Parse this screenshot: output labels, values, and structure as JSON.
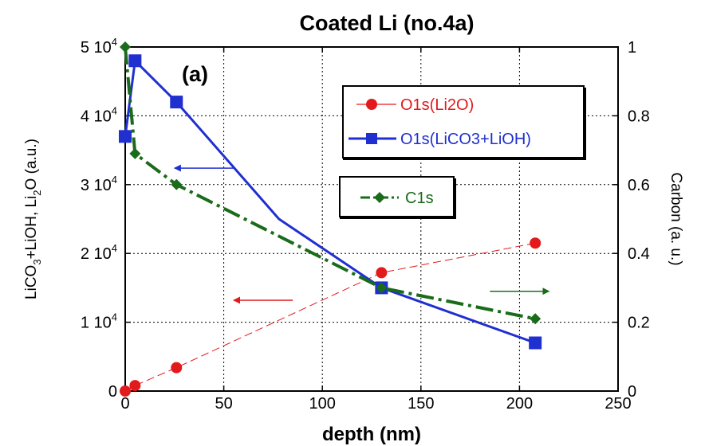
{
  "chart_data": {
    "type": "line",
    "title": "Coated Li (no.4a)",
    "panel_label": "(a)",
    "xlabel": "depth (nm)",
    "ylabel_left": {
      "base": "LiCO",
      "sub1": "3",
      "mid": "+LiOH, Li",
      "sub2": "2",
      "end": "O (a.u.)"
    },
    "ylabel_right": "Carbon (a. u.)",
    "xlim": [
      0,
      250
    ],
    "ylim_left": [
      0,
      50000
    ],
    "ylim_right": [
      0,
      1
    ],
    "x_ticks": [
      "0",
      "50",
      "100",
      "150",
      "200",
      "250"
    ],
    "y_left_ticks": [
      {
        "mant": "0",
        "exp": ""
      },
      {
        "mant": "1 10",
        "exp": "4"
      },
      {
        "mant": "2 10",
        "exp": "4"
      },
      {
        "mant": "3 10",
        "exp": "4"
      },
      {
        "mant": "4 10",
        "exp": "4"
      },
      {
        "mant": "5 10",
        "exp": "4"
      }
    ],
    "y_right_ticks": [
      "0",
      "0.2",
      "0.4",
      "0.6",
      "0.8",
      "1"
    ],
    "grid": true,
    "series": [
      {
        "name": "O1s(Li2O)",
        "axis": "left",
        "color": "#e31a1c",
        "marker": "circle",
        "line": "thin-dashed",
        "x": [
          0,
          5,
          26,
          130,
          208
        ],
        "y": [
          0,
          800,
          3400,
          17200,
          21500
        ]
      },
      {
        "name": "O1s(LiCO3+LiOH)",
        "axis": "left",
        "color": "#1f2fd0",
        "marker": "square",
        "line": "solid",
        "x": [
          0,
          5,
          26,
          78,
          130,
          208
        ],
        "y": [
          37000,
          48000,
          42000,
          25000,
          15000,
          7000
        ],
        "marker_mask": [
          true,
          true,
          true,
          false,
          true,
          true
        ]
      },
      {
        "name": "C1s",
        "axis": "right",
        "color": "#1a6b1a",
        "marker": "diamond",
        "line": "dash-dot",
        "x": [
          0,
          5,
          26,
          130,
          208
        ],
        "y": [
          1.0,
          0.69,
          0.6,
          0.3,
          0.21
        ]
      }
    ],
    "annotations": [
      {
        "type": "arrow",
        "direction": "left",
        "color": "#1f2fd0",
        "y_axis": "left",
        "x_from": 55,
        "x_to": 25,
        "y": 32400
      },
      {
        "type": "arrow",
        "direction": "left",
        "color": "#e31a1c",
        "y_axis": "left",
        "x_from": 85,
        "x_to": 55,
        "y": 13200
      },
      {
        "type": "arrow",
        "direction": "right",
        "color": "#1a6b1a",
        "y_axis": "right",
        "x_from": 185,
        "x_to": 215,
        "y": 0.29
      }
    ],
    "legend": [
      "O1s(Li2O)",
      "O1s(LiCO3+LiOH)",
      "C1s"
    ]
  }
}
